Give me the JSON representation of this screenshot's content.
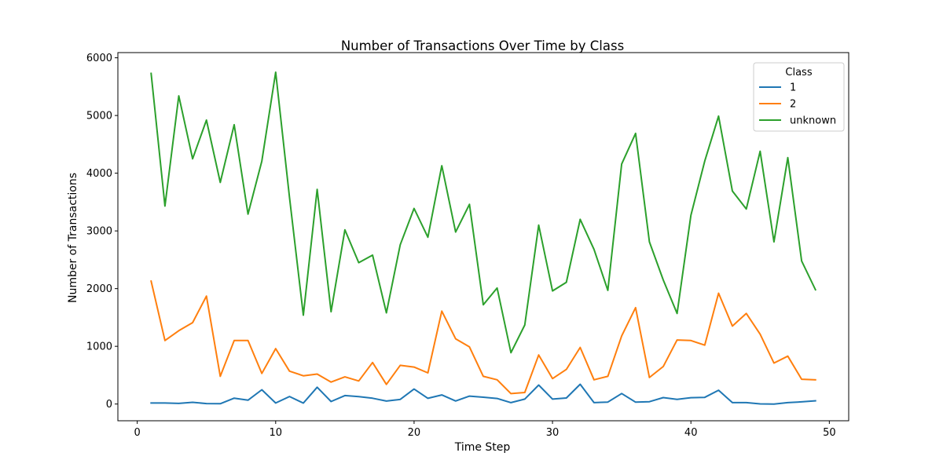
{
  "chart_data": {
    "type": "line",
    "title": "Number of Transactions Over Time by Class",
    "xlabel": "Time Step",
    "ylabel": "Number of Transactions",
    "xlim": [
      -1.4,
      51.4
    ],
    "ylim": [
      -290,
      6090
    ],
    "xticks": [
      0,
      10,
      20,
      30,
      40,
      50
    ],
    "yticks": [
      0,
      1000,
      2000,
      3000,
      4000,
      5000,
      6000
    ],
    "grid": false,
    "legend": {
      "title": "Class",
      "placement": "top-right"
    },
    "x": [
      1,
      2,
      3,
      4,
      5,
      6,
      7,
      8,
      9,
      10,
      11,
      12,
      13,
      14,
      15,
      16,
      17,
      18,
      19,
      20,
      21,
      22,
      23,
      24,
      25,
      26,
      27,
      28,
      29,
      30,
      31,
      32,
      33,
      34,
      35,
      36,
      37,
      38,
      39,
      40,
      41,
      42,
      43,
      44,
      45,
      46,
      47,
      48,
      49
    ],
    "series": [
      {
        "name": "1",
        "color": "#1f77b4",
        "values": [
          17,
          18,
          11,
          30,
          8,
          5,
          102,
          67,
          248,
          18,
          131,
          16,
          291,
          43,
          147,
          128,
          100,
          52,
          80,
          260,
          99,
          157,
          53,
          137,
          118,
          96,
          24,
          86,
          329,
          86,
          104,
          342,
          24,
          34,
          182,
          33,
          40,
          111,
          81,
          110,
          116,
          239,
          24,
          24,
          2,
          0,
          24,
          38,
          56
        ]
      },
      {
        "name": "2",
        "color": "#ff7f0e",
        "values": [
          2130,
          1100,
          1270,
          1410,
          1870,
          480,
          1100,
          1100,
          530,
          960,
          570,
          490,
          520,
          380,
          470,
          400,
          720,
          340,
          670,
          640,
          540,
          1610,
          1130,
          990,
          480,
          420,
          180,
          200,
          850,
          440,
          600,
          980,
          420,
          480,
          1180,
          1670,
          460,
          650,
          1110,
          1100,
          1020,
          1920,
          1350,
          1570,
          1210,
          710,
          830,
          430,
          420
        ]
      },
      {
        "name": "unknown",
        "color": "#2ca02c",
        "values": [
          5730,
          3430,
          5340,
          4250,
          4920,
          3840,
          4840,
          3290,
          4210,
          5750,
          3580,
          1540,
          3720,
          1600,
          3020,
          2450,
          2580,
          1580,
          2760,
          3390,
          2890,
          4130,
          2980,
          3460,
          1720,
          2010,
          890,
          1370,
          3100,
          1960,
          2110,
          3200,
          2680,
          1970,
          4160,
          4690,
          2810,
          2150,
          1570,
          3270,
          4210,
          4990,
          3690,
          3380,
          4380,
          2810,
          4270,
          2480,
          1980
        ]
      }
    ]
  }
}
